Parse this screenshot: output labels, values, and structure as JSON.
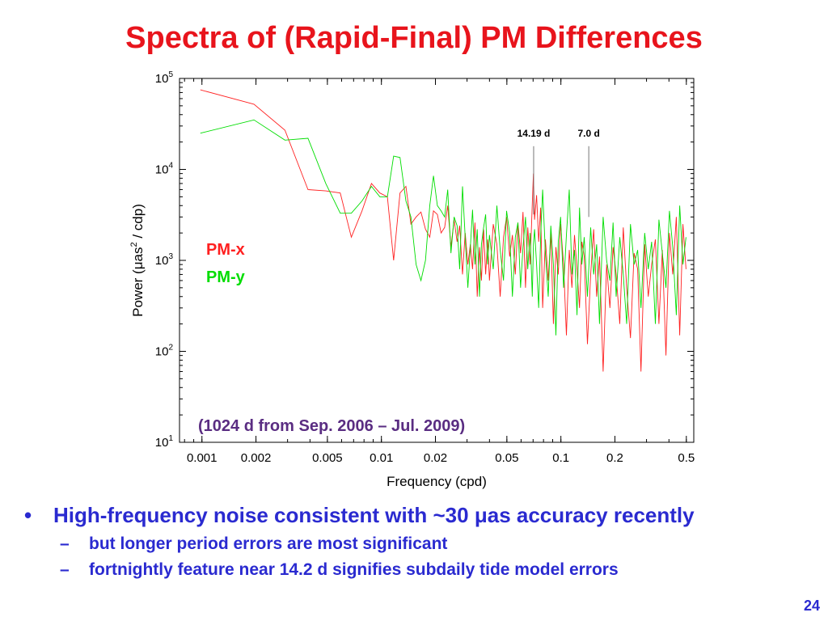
{
  "slide": {
    "title": "Spectra of (Rapid-Final) PM Differences",
    "page_number": "24",
    "bullets": [
      {
        "text": "High-frequency noise consistent with ~30 μas accuracy recently",
        "sub": [
          "but longer period errors are most significant",
          "fortnightly feature near 14.2 d signifies subdaily tide model errors"
        ]
      }
    ]
  },
  "colors": {
    "title": "#e8141c",
    "text": "#2a2ad0",
    "pmx": "#ff2020",
    "pmy": "#00dd00",
    "annotation": "#5a2d82"
  },
  "chart_data": {
    "type": "line",
    "xscale": "log",
    "yscale": "log",
    "xlim": [
      0.00075,
      0.55
    ],
    "ylim": [
      10,
      100000
    ],
    "xlabel": "Frequency (cpd)",
    "ylabel": "Power (μas² / cdp)",
    "ylabel_main": "Power (",
    "ylabel_mu": "μ",
    "ylabel_rest": "as",
    "ylabel_sup": "2",
    "ylabel_tail": " / cdp)",
    "xticks": [
      0.001,
      0.002,
      0.005,
      0.01,
      0.02,
      0.05,
      0.1,
      0.2,
      0.5
    ],
    "xtick_labels": [
      "0.001",
      "0.002",
      "0.005",
      "0.01",
      "0.02",
      "0.05",
      "0.1",
      "0.2",
      "0.5"
    ],
    "yticks": [
      10,
      100,
      1000,
      10000,
      100000
    ],
    "ytick_base": "10",
    "ytick_exps": [
      "1",
      "2",
      "3",
      "4",
      "5"
    ],
    "legend_placement": "left-middle",
    "annotation": "(1024 d from Sep. 2006 – Jul. 2009)",
    "period_markers": [
      {
        "label": "14.19 d",
        "x": 0.0705,
        "y_top": 18000,
        "y_bottom": 3200
      },
      {
        "label": "7.0 d",
        "x": 0.143,
        "y_top": 18000,
        "y_bottom": 3000
      }
    ],
    "series": [
      {
        "name": "PM-x",
        "x": [
          0.00098,
          0.00195,
          0.0029,
          0.0039,
          0.0049,
          0.0059,
          0.0068,
          0.0078,
          0.0088,
          0.0098,
          0.0108,
          0.0117,
          0.0127,
          0.0137,
          0.0146,
          0.0156,
          0.0166,
          0.0176,
          0.0186,
          0.0195,
          0.0205,
          0.0215,
          0.0225,
          0.0234,
          0.0244,
          0.0254,
          0.0264,
          0.0273,
          0.0283,
          0.0293,
          0.0303,
          0.0313,
          0.0322,
          0.0332,
          0.0342,
          0.0352,
          0.0361,
          0.0371,
          0.0381,
          0.0391,
          0.04,
          0.042,
          0.044,
          0.0459,
          0.0479,
          0.0498,
          0.0518,
          0.0537,
          0.0557,
          0.0576,
          0.0596,
          0.0615,
          0.0635,
          0.0654,
          0.0674,
          0.0693,
          0.0703,
          0.0713,
          0.0732,
          0.0752,
          0.0771,
          0.0791,
          0.082,
          0.085,
          0.0879,
          0.0908,
          0.0938,
          0.0967,
          0.0996,
          0.1035,
          0.1074,
          0.1113,
          0.1152,
          0.1191,
          0.123,
          0.127,
          0.1309,
          0.1348,
          0.1406,
          0.1465,
          0.1523,
          0.1582,
          0.1641,
          0.1719,
          0.1797,
          0.1875,
          0.1953,
          0.2031,
          0.2129,
          0.2227,
          0.2324,
          0.2441,
          0.2559,
          0.2676,
          0.2793,
          0.293,
          0.3066,
          0.3203,
          0.3359,
          0.3516,
          0.3672,
          0.3848,
          0.4023,
          0.4199,
          0.4395,
          0.459,
          0.4785,
          0.498
        ],
        "y": [
          75000,
          52000,
          27000,
          6000,
          5800,
          5500,
          1800,
          3500,
          7000,
          5500,
          5000,
          1000,
          5500,
          6500,
          2500,
          3000,
          3400,
          2200,
          1800,
          3500,
          3200,
          2000,
          2300,
          4000,
          1400,
          2800,
          1600,
          2400,
          700,
          2000,
          900,
          1500,
          800,
          2600,
          400,
          1400,
          600,
          2200,
          700,
          1700,
          600,
          2500,
          1500,
          400,
          1800,
          3000,
          1100,
          1900,
          700,
          2600,
          1200,
          3400,
          500,
          2300,
          900,
          4200,
          9000,
          2800,
          5200,
          1600,
          3800,
          300,
          1700,
          600,
          2000,
          200,
          1400,
          700,
          2500,
          900,
          150,
          1300,
          500,
          1900,
          800,
          300,
          1600,
          1100,
          120,
          700,
          2200,
          400,
          1100,
          60,
          900,
          300,
          1400,
          700,
          200,
          2300,
          500,
          140,
          1200,
          800,
          60,
          1500,
          400,
          900,
          1700,
          200,
          1300,
          90,
          2000,
          700,
          3000,
          150,
          2500,
          800
        ]
      },
      {
        "name": "PM-y",
        "x": [
          0.00098,
          0.00195,
          0.0029,
          0.0039,
          0.0049,
          0.0059,
          0.0068,
          0.0078,
          0.0088,
          0.0098,
          0.0108,
          0.0117,
          0.0127,
          0.0137,
          0.0146,
          0.0156,
          0.0166,
          0.0176,
          0.0186,
          0.0195,
          0.0205,
          0.0215,
          0.0225,
          0.0234,
          0.0244,
          0.0254,
          0.0264,
          0.0273,
          0.0283,
          0.0293,
          0.0303,
          0.0313,
          0.0322,
          0.0332,
          0.0342,
          0.0352,
          0.0361,
          0.0371,
          0.0381,
          0.0391,
          0.04,
          0.042,
          0.044,
          0.0459,
          0.0479,
          0.0498,
          0.0518,
          0.0537,
          0.0557,
          0.0576,
          0.0596,
          0.0615,
          0.0635,
          0.0654,
          0.0674,
          0.0693,
          0.0703,
          0.0713,
          0.0732,
          0.0752,
          0.0771,
          0.0791,
          0.082,
          0.085,
          0.0879,
          0.0908,
          0.0938,
          0.0967,
          0.0996,
          0.1035,
          0.1074,
          0.1113,
          0.1152,
          0.1191,
          0.123,
          0.127,
          0.1309,
          0.1348,
          0.1406,
          0.1465,
          0.1523,
          0.1582,
          0.1641,
          0.1719,
          0.1797,
          0.1875,
          0.1953,
          0.2031,
          0.2129,
          0.2227,
          0.2324,
          0.2441,
          0.2559,
          0.2676,
          0.2793,
          0.293,
          0.3066,
          0.3203,
          0.3359,
          0.3516,
          0.3672,
          0.3848,
          0.4023,
          0.4199,
          0.4395,
          0.459,
          0.4785,
          0.498
        ],
        "y": [
          25000,
          35000,
          21000,
          22000,
          7000,
          3300,
          3300,
          4500,
          6500,
          5000,
          5000,
          14000,
          13500,
          4500,
          3000,
          900,
          600,
          1000,
          4000,
          8500,
          4000,
          3500,
          3000,
          6000,
          1200,
          3000,
          2400,
          800,
          6500,
          1800,
          500,
          1400,
          3600,
          900,
          2200,
          400,
          1500,
          2300,
          3200,
          900,
          1900,
          800,
          4000,
          1300,
          600,
          3500,
          2000,
          400,
          1800,
          2600,
          500,
          1400,
          3000,
          800,
          2000,
          400,
          1500,
          2200,
          900,
          300,
          1800,
          6000,
          1200,
          400,
          2400,
          900,
          150,
          1600,
          3000,
          500,
          1900,
          6000,
          700,
          1300,
          250,
          3800,
          900,
          1800,
          400,
          2300,
          700,
          1500,
          200,
          3000,
          1000,
          600,
          2600,
          400,
          1800,
          700,
          200,
          2500,
          900,
          1300,
          300,
          2000,
          800,
          1600,
          200,
          2800,
          1200,
          500,
          3500,
          1400,
          250,
          4000,
          900,
          1800
        ]
      }
    ]
  }
}
